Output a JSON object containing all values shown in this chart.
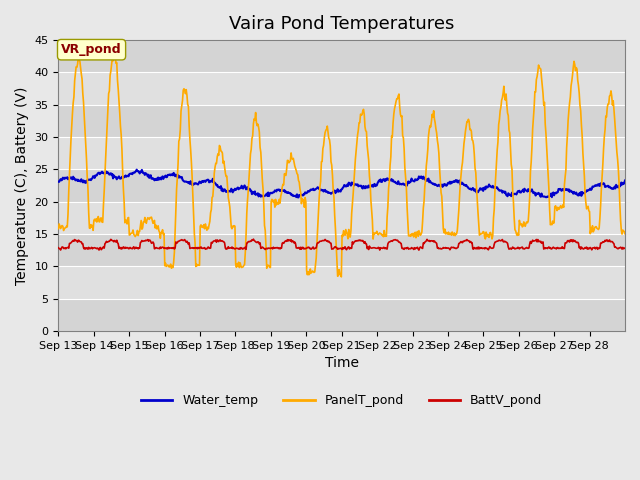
{
  "title": "Vaira Pond Temperatures",
  "xlabel": "Time",
  "ylabel": "Temperature (C), Battery (V)",
  "site_label": "VR_pond",
  "ylim": [
    0,
    45
  ],
  "yticks": [
    0,
    5,
    10,
    15,
    20,
    25,
    30,
    35,
    40,
    45
  ],
  "xtick_labels": [
    "Sep 13",
    "Sep 14",
    "Sep 15",
    "Sep 16",
    "Sep 17",
    "Sep 18",
    "Sep 19",
    "Sep 20",
    "Sep 21",
    "Sep 22",
    "Sep 23",
    "Sep 24",
    "Sep 25",
    "Sep 26",
    "Sep 27",
    "Sep 28"
  ],
  "water_temp_color": "#0000cc",
  "panel_temp_color": "#ffaa00",
  "batt_color": "#cc0000",
  "bg_color": "#e8e8e8",
  "plot_bg_color": "#d4d4d4",
  "stripe_color": "#e0e0e0",
  "legend_labels": [
    "Water_temp",
    "PanelT_pond",
    "BattV_pond"
  ],
  "title_fontsize": 13,
  "axis_fontsize": 10,
  "tick_fontsize": 8,
  "day_peaks": [
    42,
    42.5,
    17,
    37.5,
    28,
    33,
    26.5,
    31,
    34,
    36,
    33,
    32.5,
    37,
    40.5,
    41,
    36.5
  ],
  "day_troughs": [
    16,
    17,
    15,
    10,
    16,
    10,
    20,
    9,
    15,
    15,
    15,
    15,
    15,
    16.5,
    19,
    15.5
  ]
}
